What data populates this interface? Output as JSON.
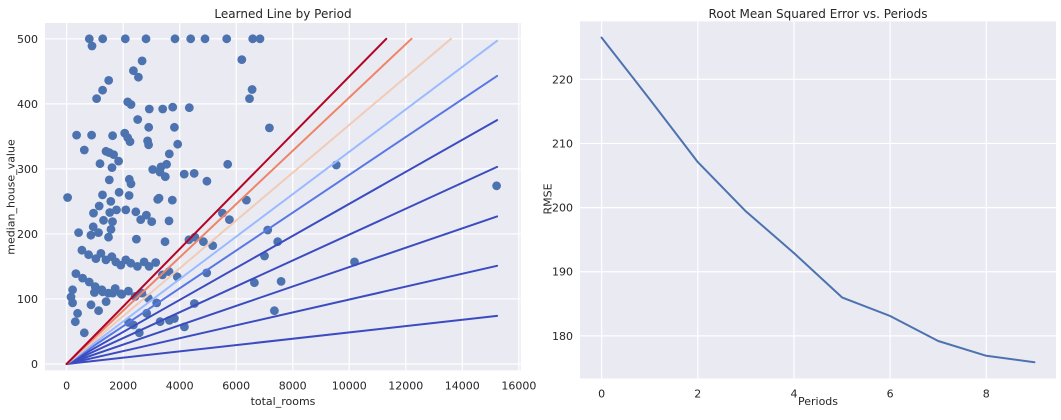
{
  "figure": {
    "background": "#ffffff",
    "axes_background": "#eaeaf2",
    "grid_color": "#ffffff",
    "text_color": "#262626",
    "scatter_color": "#4c72b0",
    "rmse_line_color": "#4c72b0"
  },
  "chart_data": [
    {
      "type": "scatter",
      "title": "Learned Line by Period",
      "xlabel": "total_rooms",
      "ylabel": "median_house_value",
      "xlim": [
        -765,
        16065
      ],
      "ylim": [
        -9.7,
        524.3
      ],
      "xticks": [
        0,
        2000,
        4000,
        6000,
        8000,
        10000,
        12000,
        14000,
        16000
      ],
      "yticks": [
        0,
        100,
        200,
        300,
        400,
        500
      ],
      "grid": true,
      "marker_color": "#4c72b0",
      "points": [
        [
          803,
          500
        ],
        [
          1277,
          500
        ],
        [
          2077,
          500
        ],
        [
          2809,
          500
        ],
        [
          3835,
          500
        ],
        [
          4390,
          500
        ],
        [
          4896,
          500
        ],
        [
          5664,
          500
        ],
        [
          6583,
          500
        ],
        [
          6842,
          500
        ],
        [
          899,
          489
        ],
        [
          2669,
          466
        ],
        [
          2362,
          451
        ],
        [
          2538,
          441
        ],
        [
          6196,
          468
        ],
        [
          1487,
          436
        ],
        [
          1274,
          421
        ],
        [
          1062,
          408
        ],
        [
          6563,
          422
        ],
        [
          6469,
          408
        ],
        [
          2160,
          403
        ],
        [
          2279,
          399
        ],
        [
          2926,
          392
        ],
        [
          3398,
          392
        ],
        [
          3752,
          395
        ],
        [
          4342,
          394
        ],
        [
          2513,
          376
        ],
        [
          2903,
          364
        ],
        [
          3813,
          364
        ],
        [
          7175,
          363
        ],
        [
          354,
          352
        ],
        [
          885,
          352
        ],
        [
          1628,
          351
        ],
        [
          2053,
          355
        ],
        [
          2160,
          348
        ],
        [
          2243,
          342
        ],
        [
          2865,
          343
        ],
        [
          2900,
          337
        ],
        [
          626,
          329
        ],
        [
          3929,
          338
        ],
        [
          3633,
          323
        ],
        [
          9540,
          306
        ],
        [
          1393,
          327
        ],
        [
          1510,
          325
        ],
        [
          1662,
          322
        ],
        [
          1180,
          308
        ],
        [
          1605,
          302
        ],
        [
          1838,
          312
        ],
        [
          3044,
          299
        ],
        [
          3339,
          303
        ],
        [
          3538,
          307
        ],
        [
          3304,
          295
        ],
        [
          5700,
          307
        ],
        [
          3491,
          288
        ],
        [
          1510,
          283
        ],
        [
          2218,
          284
        ],
        [
          2278,
          277
        ],
        [
          4160,
          292
        ],
        [
          4513,
          293
        ],
        [
          4962,
          281
        ],
        [
          15211,
          274
        ],
        [
          35,
          256
        ],
        [
          1270,
          260
        ],
        [
          1564,
          250
        ],
        [
          1858,
          264
        ],
        [
          2211,
          259
        ],
        [
          3269,
          255
        ],
        [
          3740,
          252
        ],
        [
          952,
          232
        ],
        [
          1152,
          243
        ],
        [
          1305,
          221
        ],
        [
          1529,
          233
        ],
        [
          1623,
          219
        ],
        [
          1764,
          237
        ],
        [
          2093,
          237
        ],
        [
          2446,
          234
        ],
        [
          2622,
          222
        ],
        [
          2822,
          229
        ],
        [
          3011,
          219
        ],
        [
          3222,
          253
        ],
        [
          3622,
          220
        ],
        [
          423,
          202
        ],
        [
          941,
          211
        ],
        [
          1129,
          202
        ],
        [
          1570,
          207
        ],
        [
          6360,
          252
        ],
        [
          5510,
          232
        ],
        [
          5760,
          222
        ],
        [
          7114,
          206
        ],
        [
          858,
          198
        ],
        [
          1482,
          195
        ],
        [
          2470,
          192
        ],
        [
          3481,
          188
        ],
        [
          4327,
          191
        ],
        [
          4539,
          195
        ],
        [
          4838,
          188
        ],
        [
          5168,
          182
        ],
        [
          7468,
          188
        ],
        [
          541,
          175
        ],
        [
          776,
          168
        ],
        [
          1035,
          162
        ],
        [
          1211,
          170
        ],
        [
          1388,
          160
        ],
        [
          1600,
          165
        ],
        [
          1741,
          157
        ],
        [
          1917,
          152
        ],
        [
          2093,
          160
        ],
        [
          2270,
          155
        ],
        [
          2505,
          150
        ],
        [
          2740,
          157
        ],
        [
          2917,
          150
        ],
        [
          7000,
          166
        ],
        [
          10184,
          157
        ],
        [
          3152,
          156
        ],
        [
          3387,
          137
        ],
        [
          3622,
          142
        ],
        [
          3916,
          134
        ],
        [
          329,
          139
        ],
        [
          565,
          132
        ],
        [
          800,
          126
        ],
        [
          1011,
          119
        ],
        [
          1247,
          114
        ],
        [
          1482,
          109
        ],
        [
          1717,
          116
        ],
        [
          1953,
          107
        ],
        [
          2187,
          112
        ],
        [
          2423,
          104
        ],
        [
          2658,
          109
        ],
        [
          2893,
          101
        ],
        [
          212,
          114
        ],
        [
          4956,
          140
        ],
        [
          6642,
          125
        ],
        [
          7587,
          127
        ],
        [
          981,
          110
        ],
        [
          1276,
          111
        ],
        [
          1630,
          109
        ],
        [
          1926,
          108
        ],
        [
          156,
          103
        ],
        [
          212,
          94
        ],
        [
          389,
          78
        ],
        [
          308,
          65
        ],
        [
          627,
          48
        ],
        [
          864,
          91
        ],
        [
          1133,
          82
        ],
        [
          1395,
          96
        ],
        [
          2195,
          64
        ],
        [
          2361,
          60
        ],
        [
          2573,
          48
        ],
        [
          2832,
          78
        ],
        [
          3186,
          94
        ],
        [
          3306,
          65
        ],
        [
          3636,
          67
        ],
        [
          3813,
          70
        ],
        [
          4167,
          57
        ],
        [
          4521,
          93
        ],
        [
          7352,
          82
        ]
      ],
      "period_lines": [
        {
          "period": 1,
          "color": "#3b4cc0",
          "start": [
            0,
            0
          ],
          "end": [
            15230,
            74
          ]
        },
        {
          "period": 2,
          "color": "#3b4cc0",
          "start": [
            0,
            0
          ],
          "end": [
            15230,
            151
          ]
        },
        {
          "period": 3,
          "color": "#3b4cc0",
          "start": [
            0,
            0
          ],
          "end": [
            15230,
            227
          ]
        },
        {
          "period": 4,
          "color": "#3b4cc0",
          "start": [
            0,
            0
          ],
          "end": [
            15230,
            303
          ]
        },
        {
          "period": 5,
          "color": "#3b4cc0",
          "start": [
            0,
            0
          ],
          "end": [
            15230,
            375
          ]
        },
        {
          "period": 6,
          "color": "#5977e3",
          "start": [
            0,
            0
          ],
          "end": [
            15230,
            443
          ]
        },
        {
          "period": 7,
          "color": "#9abbff",
          "start": [
            0,
            0
          ],
          "end": [
            15230,
            497
          ]
        },
        {
          "period": 8,
          "color": "#f2cbb7",
          "start": [
            0,
            0
          ],
          "end": [
            13600,
            500
          ]
        },
        {
          "period": 9,
          "color": "#ee8468",
          "start": [
            0,
            0
          ],
          "end": [
            12200,
            500
          ]
        },
        {
          "period": 10,
          "color": "#b40426",
          "start": [
            0,
            0
          ],
          "end": [
            11310,
            500
          ]
        }
      ]
    },
    {
      "type": "line",
      "title": "Root Mean Squared Error vs. Periods",
      "xlabel": "Periods",
      "ylabel": "RMSE",
      "xlim": [
        -0.45,
        9.45
      ],
      "ylim": [
        173.37,
        229.03
      ],
      "xticks": [
        0,
        2,
        4,
        6,
        8
      ],
      "yticks": [
        180,
        190,
        200,
        210,
        220
      ],
      "grid": true,
      "line_color": "#4c72b0",
      "x": [
        0,
        1,
        2,
        3,
        4,
        5,
        6,
        7,
        8,
        9
      ],
      "rmse": [
        226.5,
        216.9,
        207.1,
        199.4,
        192.9,
        186.0,
        183.1,
        179.2,
        176.9,
        175.9
      ]
    }
  ]
}
